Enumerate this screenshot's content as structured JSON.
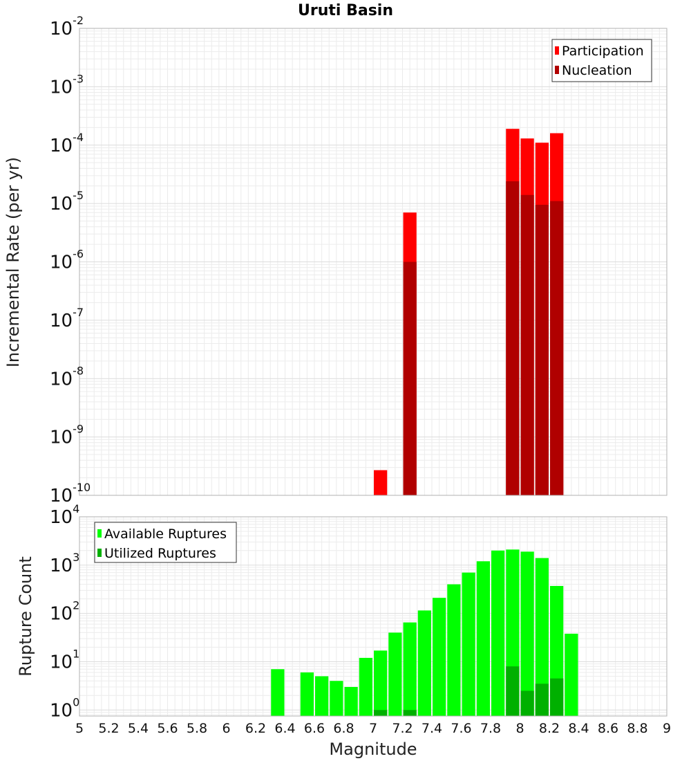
{
  "chart_data": [
    {
      "type": "bar",
      "title": "Uruti Basin",
      "xlabel": "Magnitude",
      "ylabel": "Incremental Rate (per yr)",
      "yscale": "log",
      "xlim": [
        5,
        9
      ],
      "ylim": [
        1e-10,
        0.01
      ],
      "grid": true,
      "legend_position": "top-right",
      "bar_width": 0.1,
      "x_ticks": [
        "5",
        "5.2",
        "5.4",
        "5.6",
        "5.8",
        "6",
        "6.2",
        "6.4",
        "6.6",
        "6.8",
        "7",
        "7.2",
        "7.4",
        "7.6",
        "7.8",
        "8",
        "8.2",
        "8.4",
        "8.6",
        "8.8",
        "9"
      ],
      "y_ticks": [
        {
          "base": "10",
          "exp": "-10"
        },
        {
          "base": "10",
          "exp": "-9"
        },
        {
          "base": "10",
          "exp": "-8"
        },
        {
          "base": "10",
          "exp": "-7"
        },
        {
          "base": "10",
          "exp": "-6"
        },
        {
          "base": "10",
          "exp": "-5"
        },
        {
          "base": "10",
          "exp": "-4"
        },
        {
          "base": "10",
          "exp": "-3"
        },
        {
          "base": "10",
          "exp": "-2"
        }
      ],
      "series": [
        {
          "name": "Participation",
          "color": "#ff0000",
          "points": [
            {
              "x": 7.05,
              "y": 2.7e-10
            },
            {
              "x": 7.25,
              "y": 7e-06
            },
            {
              "x": 7.95,
              "y": 0.00019
            },
            {
              "x": 8.05,
              "y": 0.00013
            },
            {
              "x": 8.15,
              "y": 0.00011
            },
            {
              "x": 8.25,
              "y": 0.00016
            }
          ]
        },
        {
          "name": "Nucleation",
          "color": "#b00000",
          "points": [
            {
              "x": 7.25,
              "y": 1e-06
            },
            {
              "x": 7.95,
              "y": 2.4e-05
            },
            {
              "x": 8.05,
              "y": 1.4e-05
            },
            {
              "x": 8.15,
              "y": 9.5e-06
            },
            {
              "x": 8.25,
              "y": 1.1e-05
            }
          ]
        }
      ]
    },
    {
      "type": "bar",
      "xlabel": "Magnitude",
      "ylabel": "Rupture Count",
      "yscale": "log",
      "xlim": [
        5,
        9
      ],
      "ylim": [
        0.75,
        10000
      ],
      "grid": true,
      "legend_position": "top-left",
      "bar_width": 0.1,
      "x_ticks": [
        "5",
        "5.2",
        "5.4",
        "5.6",
        "5.8",
        "6",
        "6.2",
        "6.4",
        "6.6",
        "6.8",
        "7",
        "7.2",
        "7.4",
        "7.6",
        "7.8",
        "8",
        "8.2",
        "8.4",
        "8.6",
        "8.8",
        "9"
      ],
      "y_ticks": [
        {
          "base": "10",
          "exp": "0"
        },
        {
          "base": "10",
          "exp": "1"
        },
        {
          "base": "10",
          "exp": "2"
        },
        {
          "base": "10",
          "exp": "3"
        },
        {
          "base": "10",
          "exp": "4"
        }
      ],
      "series": [
        {
          "name": "Available Ruptures",
          "color": "#00ff00",
          "points": [
            {
              "x": 6.35,
              "y": 7
            },
            {
              "x": 6.55,
              "y": 6
            },
            {
              "x": 6.65,
              "y": 5
            },
            {
              "x": 6.75,
              "y": 4
            },
            {
              "x": 6.85,
              "y": 3
            },
            {
              "x": 6.95,
              "y": 12
            },
            {
              "x": 7.05,
              "y": 17
            },
            {
              "x": 7.15,
              "y": 40
            },
            {
              "x": 7.25,
              "y": 65
            },
            {
              "x": 7.35,
              "y": 115
            },
            {
              "x": 7.45,
              "y": 210
            },
            {
              "x": 7.55,
              "y": 400
            },
            {
              "x": 7.65,
              "y": 700
            },
            {
              "x": 7.75,
              "y": 1200
            },
            {
              "x": 7.85,
              "y": 2000
            },
            {
              "x": 7.95,
              "y": 2100
            },
            {
              "x": 8.05,
              "y": 1900
            },
            {
              "x": 8.15,
              "y": 1400
            },
            {
              "x": 8.25,
              "y": 370
            },
            {
              "x": 8.35,
              "y": 38
            }
          ]
        },
        {
          "name": "Utilized Ruptures",
          "color": "#00b000",
          "points": [
            {
              "x": 7.05,
              "y": 1
            },
            {
              "x": 7.25,
              "y": 1
            },
            {
              "x": 7.95,
              "y": 8
            },
            {
              "x": 8.05,
              "y": 2.5
            },
            {
              "x": 8.15,
              "y": 3.5
            },
            {
              "x": 8.25,
              "y": 4.5
            }
          ]
        }
      ]
    }
  ]
}
